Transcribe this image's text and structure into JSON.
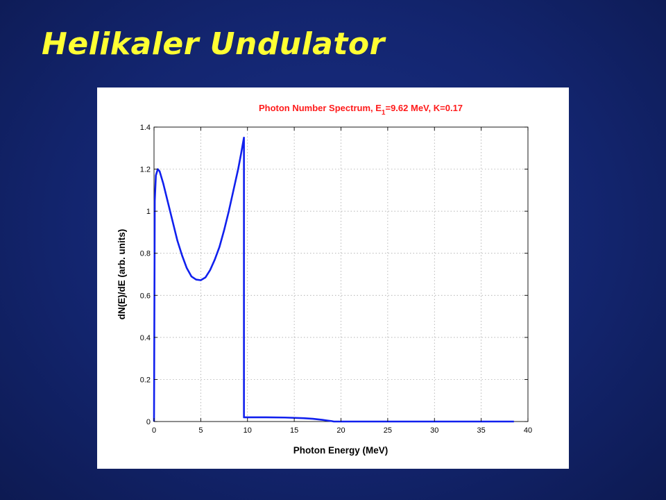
{
  "slide": {
    "title": "Helikaler Undulator",
    "background_color": "#13256f",
    "title_color": "#ffff33"
  },
  "chart_data": {
    "type": "line",
    "title_parts": [
      "Photon Number Spectrum, E",
      "1",
      "=9.62 MeV, K=0.17"
    ],
    "title_color": "#ff1a1a",
    "xlabel": "Photon Energy (MeV)",
    "ylabel": "dN(E)/dE (arb. units)",
    "xlim": [
      0,
      40
    ],
    "ylim": [
      0,
      1.4
    ],
    "xticks": [
      0,
      5,
      10,
      15,
      20,
      25,
      30,
      35,
      40
    ],
    "yticks": [
      0,
      0.2,
      0.4,
      0.6,
      0.8,
      1,
      1.2,
      1.4
    ],
    "grid": true,
    "series": [
      {
        "color": "#1020ee",
        "x": [
          0,
          0.08,
          0.2,
          0.4,
          0.6,
          1.0,
          1.5,
          2.0,
          2.5,
          3.0,
          3.5,
          4.0,
          4.5,
          5.0,
          5.5,
          6.0,
          6.5,
          7.0,
          7.5,
          8.0,
          8.5,
          9.0,
          9.3,
          9.5,
          9.62,
          9.62,
          9.7,
          12.0,
          14.0,
          16.0,
          17.0,
          18.0,
          18.5,
          19.0,
          19.24,
          20.0,
          25.0,
          30.0,
          35.0,
          38.5
        ],
        "y": [
          0,
          1.05,
          1.17,
          1.2,
          1.19,
          1.13,
          1.04,
          0.95,
          0.86,
          0.79,
          0.73,
          0.69,
          0.675,
          0.672,
          0.685,
          0.72,
          0.77,
          0.83,
          0.91,
          1.0,
          1.1,
          1.2,
          1.27,
          1.32,
          1.35,
          0.02,
          0.02,
          0.02,
          0.019,
          0.016,
          0.013,
          0.008,
          0.005,
          0.002,
          0,
          0,
          0,
          0,
          0,
          0
        ]
      }
    ]
  }
}
